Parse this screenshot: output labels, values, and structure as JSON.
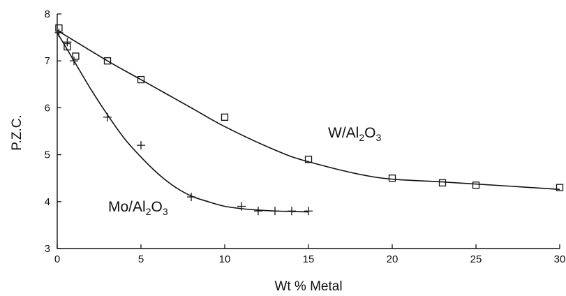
{
  "chart_data": {
    "type": "scatter",
    "title": "",
    "xlabel": "Wt % Metal",
    "ylabel": "P.Z.C.",
    "xlim": [
      0,
      30
    ],
    "ylim": [
      3,
      8
    ],
    "xticks": [
      0,
      5,
      10,
      15,
      20,
      25,
      30
    ],
    "yticks": [
      3,
      4,
      5,
      6,
      7,
      8
    ],
    "grid": false,
    "legend": "none",
    "series": [
      {
        "name": "W/Al2O3",
        "label_parts": [
          "W/Al",
          "2",
          "O",
          "3"
        ],
        "marker": "square",
        "x": [
          0.1,
          0.6,
          1.1,
          3.0,
          5.0,
          10.0,
          15.0,
          20.0,
          23.0,
          25.0,
          30.0
        ],
        "y": [
          7.7,
          7.3,
          7.1,
          7.0,
          6.6,
          5.8,
          4.9,
          4.5,
          4.4,
          4.35,
          4.3
        ],
        "fit_x": [
          0,
          3,
          5,
          8,
          10,
          13,
          15,
          19,
          23,
          27,
          30
        ],
        "fit_y": [
          7.65,
          7.0,
          6.6,
          6.0,
          5.6,
          5.1,
          4.85,
          4.52,
          4.42,
          4.33,
          4.26
        ]
      },
      {
        "name": "Mo/Al2O3",
        "label_parts": [
          "Mo/Al",
          "2",
          "O",
          "3"
        ],
        "marker": "plus",
        "x": [
          0.1,
          0.6,
          1.0,
          3.0,
          5.0,
          8.0,
          11.0,
          12.0,
          13.0,
          14.0,
          15.0
        ],
        "y": [
          7.6,
          7.4,
          7.0,
          5.8,
          5.2,
          4.1,
          3.9,
          3.8,
          3.8,
          3.8,
          3.8
        ],
        "fit_x": [
          0,
          1,
          2,
          3,
          4,
          5,
          6,
          7,
          8,
          9,
          10,
          11,
          12,
          13,
          14,
          15
        ],
        "fit_y": [
          7.6,
          7.0,
          6.4,
          5.85,
          5.35,
          4.95,
          4.6,
          4.32,
          4.12,
          4.0,
          3.9,
          3.85,
          3.82,
          3.8,
          3.79,
          3.78
        ]
      }
    ]
  }
}
